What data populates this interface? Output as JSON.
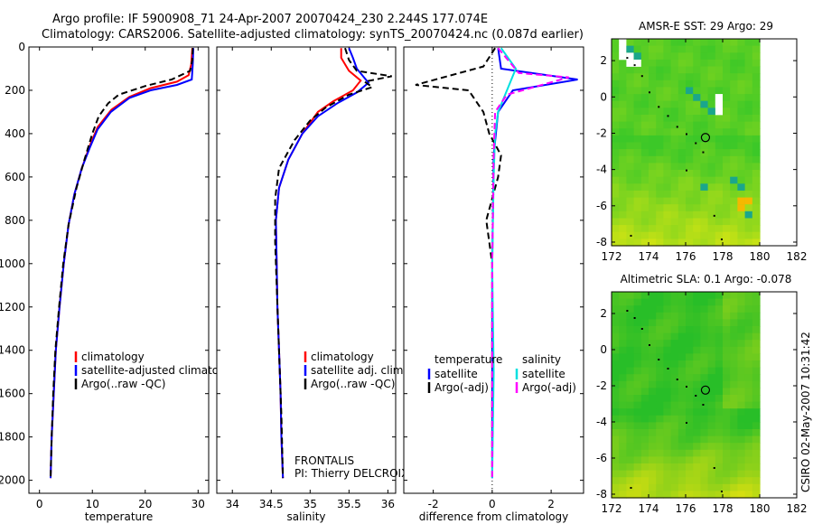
{
  "header": {
    "line1": "Argo profile: IF 5900908_71 24-Apr-2007 20070424_230 2.244S 177.074E",
    "line2": "Climatology: CARS2006. Satellite-adjusted climatology: synTS_20070424.nc (0.087d earlier)"
  },
  "footer": {
    "side_label": "CSIRO 02-May-2007 10:31:42"
  },
  "colors": {
    "climatology": "#ff0000",
    "satellite": "#0000ff",
    "argo": "#000000",
    "sat_salinity": "#00e0e0",
    "argo_salinity": "#ff00ff"
  },
  "chart_data": [
    {
      "type": "line",
      "xlabel": "temperature",
      "xlim": [
        -2,
        32
      ],
      "ylim": [
        2060,
        0
      ],
      "xticks": [
        "0",
        "10",
        "20",
        "30"
      ],
      "yticks": [
        "0",
        "200",
        "400",
        "600",
        "800",
        "1000",
        "1200",
        "1400",
        "1600",
        "1800",
        "2000"
      ],
      "series": [
        {
          "name": "climatology",
          "color": "#ff0000",
          "points": [
            [
              28.9,
              5
            ],
            [
              28.7,
              80
            ],
            [
              28.2,
              130
            ],
            [
              26,
              160
            ],
            [
              21,
              190
            ],
            [
              17,
              230
            ],
            [
              13.6,
              290
            ],
            [
              11,
              370
            ],
            [
              9.6,
              450
            ],
            [
              8,
              560
            ],
            [
              6.6,
              680
            ],
            [
              5.5,
              820
            ],
            [
              4.6,
              1000
            ],
            [
              3.8,
              1200
            ],
            [
              3.1,
              1400
            ],
            [
              2.7,
              1600
            ],
            [
              2.3,
              1800
            ],
            [
              2.1,
              1990
            ]
          ]
        },
        {
          "name": "satellite-adjusted climatology",
          "color": "#0000ff",
          "points": [
            [
              29.1,
              5
            ],
            [
              29,
              80
            ],
            [
              28.8,
              150
            ],
            [
              26,
              175
            ],
            [
              21,
              200
            ],
            [
              17,
              235
            ],
            [
              13.5,
              300
            ],
            [
              11,
              380
            ],
            [
              9.6,
              460
            ],
            [
              8,
              560
            ],
            [
              6.6,
              680
            ],
            [
              5.5,
              820
            ],
            [
              4.6,
              1000
            ],
            [
              3.8,
              1200
            ],
            [
              3.1,
              1400
            ],
            [
              2.7,
              1600
            ],
            [
              2.3,
              1800
            ],
            [
              2.1,
              1990
            ]
          ]
        },
        {
          "name": "Argo(..raw -QC)",
          "color": "#000000",
          "dashed": true,
          "points": [
            [
              29,
              5
            ],
            [
              28.9,
              60
            ],
            [
              28.5,
              110
            ],
            [
              25,
              150
            ],
            [
              20,
              180
            ],
            [
              15,
              220
            ],
            [
              13,
              260
            ],
            [
              11.2,
              320
            ],
            [
              10,
              400
            ],
            [
              8.5,
              520
            ],
            [
              7,
              650
            ],
            [
              5.5,
              820
            ],
            [
              4.5,
              1000
            ],
            [
              3.7,
              1200
            ],
            [
              3,
              1400
            ],
            [
              2.6,
              1600
            ],
            [
              2.3,
              1800
            ],
            [
              2.1,
              1990
            ]
          ]
        }
      ],
      "legend": [
        "climatology",
        "satellite-adjusted climatology",
        "Argo(..raw -QC)"
      ]
    },
    {
      "type": "line",
      "xlabel": "salinity",
      "xlim": [
        33.8,
        36.1
      ],
      "ylim": [
        2060,
        0
      ],
      "xticks": [
        "34",
        "34.5",
        "35",
        "35.5",
        "36"
      ],
      "series": [
        {
          "name": "climatology",
          "color": "#ff0000",
          "points": [
            [
              35.4,
              5
            ],
            [
              35.4,
              50
            ],
            [
              35.5,
              110
            ],
            [
              35.65,
              155
            ],
            [
              35.55,
              200
            ],
            [
              35.3,
              250
            ],
            [
              35.1,
              300
            ],
            [
              34.9,
              400
            ],
            [
              34.72,
              520
            ],
            [
              34.6,
              650
            ],
            [
              34.56,
              800
            ],
            [
              34.57,
              1000
            ],
            [
              34.58,
              1200
            ],
            [
              34.6,
              1400
            ],
            [
              34.62,
              1600
            ],
            [
              34.63,
              1800
            ],
            [
              34.65,
              1990
            ]
          ]
        },
        {
          "name": "satellite adj. clim.",
          "color": "#0000ff",
          "points": [
            [
              35.5,
              5
            ],
            [
              35.55,
              50
            ],
            [
              35.6,
              100
            ],
            [
              35.75,
              165
            ],
            [
              35.6,
              210
            ],
            [
              35.35,
              260
            ],
            [
              35.1,
              320
            ],
            [
              34.9,
              400
            ],
            [
              34.72,
              520
            ],
            [
              34.6,
              650
            ],
            [
              34.56,
              800
            ],
            [
              34.57,
              1000
            ],
            [
              34.58,
              1200
            ],
            [
              34.6,
              1400
            ],
            [
              34.62,
              1600
            ],
            [
              34.63,
              1800
            ],
            [
              34.65,
              1990
            ]
          ]
        },
        {
          "name": "Argo(..raw -QC)",
          "color": "#000000",
          "dashed": true,
          "points": [
            [
              35.45,
              5
            ],
            [
              35.5,
              60
            ],
            [
              35.6,
              110
            ],
            [
              36.05,
              135
            ],
            [
              35.7,
              160
            ],
            [
              35.8,
              185
            ],
            [
              35.5,
              220
            ],
            [
              35.2,
              280
            ],
            [
              35.0,
              340
            ],
            [
              34.8,
              430
            ],
            [
              34.6,
              560
            ],
            [
              34.55,
              700
            ],
            [
              34.55,
              900
            ],
            [
              34.57,
              1100
            ],
            [
              34.6,
              1400
            ],
            [
              34.63,
              1700
            ],
            [
              34.65,
              1990
            ]
          ]
        }
      ],
      "legend": [
        "climatology",
        "satellite adj. clim.",
        "Argo(..raw -QC)"
      ],
      "annotation": [
        "FRONTALIS",
        "PI: Thierry DELCROIX"
      ]
    },
    {
      "type": "line",
      "xlabel": "difference from climatology",
      "xlim": [
        -3,
        3.1
      ],
      "ylim": [
        2060,
        0
      ],
      "xticks": [
        "-2",
        "0",
        "2"
      ],
      "series": [
        {
          "name": "temperature satellite",
          "color": "#0000ff",
          "points": [
            [
              0.2,
              5
            ],
            [
              0.3,
              100
            ],
            [
              2.9,
              150
            ],
            [
              0.7,
              200
            ],
            [
              0.2,
              300
            ],
            [
              0.05,
              500
            ],
            [
              0,
              1000
            ],
            [
              0,
              1500
            ],
            [
              0,
              1990
            ]
          ]
        },
        {
          "name": "temperature Argo(-adj)",
          "color": "#000000",
          "dashed": true,
          "points": [
            [
              0.1,
              5
            ],
            [
              -0.3,
              90
            ],
            [
              -2.6,
              175
            ],
            [
              -0.8,
              200
            ],
            [
              -0.3,
              300
            ],
            [
              -0.1,
              400
            ],
            [
              0.3,
              500
            ],
            [
              0.2,
              600
            ],
            [
              -0.2,
              800
            ],
            [
              0,
              1000
            ],
            [
              0,
              1500
            ],
            [
              0,
              1990
            ]
          ]
        },
        {
          "name": "salinity satellite",
          "color": "#00e0e0",
          "points": [
            [
              0.3,
              5
            ],
            [
              0.8,
              100
            ],
            [
              0.5,
              200
            ],
            [
              0.2,
              300
            ],
            [
              0.1,
              400
            ],
            [
              0.05,
              600
            ],
            [
              0,
              1000
            ],
            [
              0.05,
              1500
            ],
            [
              0,
              1990
            ]
          ]
        },
        {
          "name": "salinity Argo(-adj)",
          "color": "#ff00ff",
          "dashed": true,
          "points": [
            [
              0.2,
              5
            ],
            [
              0.9,
              120
            ],
            [
              2.6,
              140
            ],
            [
              0.5,
              220
            ],
            [
              0.1,
              300
            ],
            [
              0.05,
              500
            ],
            [
              0,
              1000
            ],
            [
              0,
              1500
            ],
            [
              0,
              1990
            ]
          ]
        }
      ],
      "legend_headers": [
        "temperature",
        "salinity"
      ],
      "legend": [
        "satellite",
        "Argo(-adj)",
        "satellite",
        "Argo(-adj)"
      ]
    },
    {
      "type": "heatmap",
      "title": "AMSR-E SST: 29 Argo: 29",
      "xlim": [
        172,
        182
      ],
      "ylim": [
        -8.2,
        3.2
      ],
      "xticks": [
        "172",
        "174",
        "176",
        "178",
        "180",
        "182"
      ],
      "yticks": [
        "2",
        "0",
        "-2",
        "-4",
        "-6",
        "-8"
      ],
      "argo_position": [
        177.07,
        -2.24
      ]
    },
    {
      "type": "heatmap",
      "title": "Altimetric SLA: 0.1 Argo: -0.078",
      "xlim": [
        172,
        182
      ],
      "ylim": [
        -8.2,
        3.2
      ],
      "xticks": [
        "172",
        "174",
        "176",
        "178",
        "180",
        "182"
      ],
      "yticks": [
        "2",
        "0",
        "-2",
        "-4",
        "-6",
        "-8"
      ],
      "argo_position": [
        177.07,
        -2.24
      ]
    }
  ]
}
